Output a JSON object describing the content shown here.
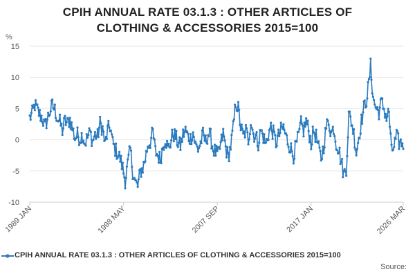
{
  "title_lines": [
    "CPIH ANNUAL RATE 03.1.3 : OTHER ARTICLES OF",
    "CLOTHING & ACCESSORIES 2015=100"
  ],
  "source_label": "Source:",
  "colors": {
    "series": "#2b7bbf",
    "grid": "#e6e6e6",
    "axis": "#cccccc",
    "text": "#555555"
  },
  "chart_data": {
    "type": "line",
    "title": "CPIH ANNUAL RATE 03.1.3 : OTHER ARTICLES OF CLOTHING & ACCESSORIES 2015=100",
    "xlabel": "",
    "ylabel": "%",
    "ylim": [
      -10,
      15
    ],
    "yticks": [
      -10,
      -5,
      0,
      5,
      10,
      15
    ],
    "x_tick_labels": [
      "1989 JAN",
      "1998 MAY",
      "2007 SEP",
      "2017 JAN",
      "2026 MAR"
    ],
    "x_range": [
      "1989 JAN",
      "2026 MAR"
    ],
    "grid": true,
    "legend": "bottom",
    "series": [
      {
        "name": "CPIH ANNUAL RATE 03.1.3 : OTHER ARTICLES OF CLOTHING & ACCESSORIES 2015=100",
        "frequency": "monthly",
        "start": "1989 JAN",
        "anchors": [
          [
            "1989 JAN",
            3.5
          ],
          [
            "1989 APR",
            4.2
          ],
          [
            "1989 JUL",
            5.6
          ],
          [
            "1989 OCT",
            4.8
          ],
          [
            "1990 JAN",
            4.0
          ],
          [
            "1990 APR",
            3.5
          ],
          [
            "1990 JUL",
            2.0
          ],
          [
            "1990 OCT",
            3.3
          ],
          [
            "1991 JAN",
            4.6
          ],
          [
            "1991 APR",
            5.5
          ],
          [
            "1991 JUL",
            4.8
          ],
          [
            "1991 OCT",
            3.5
          ],
          [
            "1992 JAN",
            2.8
          ],
          [
            "1992 APR",
            1.5
          ],
          [
            "1992 JUL",
            3.0
          ],
          [
            "1992 OCT",
            2.6
          ],
          [
            "1993 JAN",
            3.3
          ],
          [
            "1993 APR",
            1.8
          ],
          [
            "1993 JUL",
            0.3
          ],
          [
            "1993 OCT",
            0.8
          ],
          [
            "1994 JAN",
            0.2
          ],
          [
            "1994 APR",
            0.9
          ],
          [
            "1994 JUL",
            -0.5
          ],
          [
            "1994 OCT",
            0.4
          ],
          [
            "1995 JAN",
            1.2
          ],
          [
            "1995 APR",
            -0.2
          ],
          [
            "1995 JUL",
            0.8
          ],
          [
            "1995 OCT",
            0.5
          ],
          [
            "1996 JAN",
            2.6
          ],
          [
            "1996 APR",
            1.8
          ],
          [
            "1996 JUL",
            -0.8
          ],
          [
            "1996 OCT",
            1.5
          ],
          [
            "1997 JAN",
            2.2
          ],
          [
            "1997 APR",
            -0.5
          ],
          [
            "1997 JUL",
            -1.5
          ],
          [
            "1997 OCT",
            -2.2
          ],
          [
            "1998 JAN",
            -3.0
          ],
          [
            "1998 APR",
            -4.5
          ],
          [
            "1998 JUL",
            -6.5
          ],
          [
            "1998 OCT",
            -4.0
          ],
          [
            "1999 JAN",
            -1.5
          ],
          [
            "1999 APR",
            -5.0
          ],
          [
            "1999 JUL",
            -6.8
          ],
          [
            "1999 OCT",
            -7.5
          ],
          [
            "2000 JAN",
            -5.2
          ],
          [
            "2000 APR",
            -4.5
          ],
          [
            "2000 JUL",
            -3.0
          ],
          [
            "2000 OCT",
            -0.8
          ],
          [
            "2001 JAN",
            -0.3
          ],
          [
            "2001 APR",
            1.2
          ],
          [
            "2001 JUL",
            -1.8
          ],
          [
            "2001 OCT",
            -2.5
          ],
          [
            "2002 JAN",
            -3.2
          ],
          [
            "2002 APR",
            -1.0
          ],
          [
            "2002 JUL",
            0.3
          ],
          [
            "2002 OCT",
            -1.5
          ],
          [
            "2003 JAN",
            -0.5
          ],
          [
            "2003 APR",
            1.0
          ],
          [
            "2003 JUL",
            0.5
          ],
          [
            "2003 OCT",
            -0.5
          ],
          [
            "2004 JAN",
            -1.0
          ],
          [
            "2004 APR",
            0.8
          ],
          [
            "2004 JUL",
            1.5
          ],
          [
            "2004 OCT",
            0.5
          ],
          [
            "2005 JAN",
            0.2
          ],
          [
            "2005 APR",
            1.2
          ],
          [
            "2005 JUL",
            -0.8
          ],
          [
            "2005 OCT",
            -1.5
          ],
          [
            "2006 JAN",
            -0.5
          ],
          [
            "2006 APR",
            0.8
          ],
          [
            "2006 JUL",
            -0.3
          ],
          [
            "2006 OCT",
            1.0
          ],
          [
            "2007 JAN",
            0.5
          ],
          [
            "2007 APR",
            -1.5
          ],
          [
            "2007 JUL",
            -2.0
          ],
          [
            "2007 OCT",
            -2.5
          ],
          [
            "2008 JAN",
            -0.8
          ],
          [
            "2008 APR",
            1.0
          ],
          [
            "2008 JUL",
            -1.2
          ],
          [
            "2008 OCT",
            -2.8
          ],
          [
            "2009 JAN",
            -1.0
          ],
          [
            "2009 APR",
            1.8
          ],
          [
            "2009 JUL",
            6.0
          ],
          [
            "2009 OCT",
            5.0
          ],
          [
            "2010 JAN",
            2.0
          ],
          [
            "2010 APR",
            0.5
          ],
          [
            "2010 JUL",
            1.5
          ],
          [
            "2010 OCT",
            0.0
          ],
          [
            "2011 JAN",
            3.0
          ],
          [
            "2011 APR",
            1.0
          ],
          [
            "2011 JUL",
            0.5
          ],
          [
            "2011 OCT",
            -0.5
          ],
          [
            "2012 JAN",
            1.5
          ],
          [
            "2012 APR",
            0.5
          ],
          [
            "2012 JUL",
            -0.8
          ],
          [
            "2012 OCT",
            1.0
          ],
          [
            "2013 JAN",
            2.0
          ],
          [
            "2013 APR",
            1.0
          ],
          [
            "2013 JUL",
            -0.5
          ],
          [
            "2013 OCT",
            0.5
          ],
          [
            "2014 JAN",
            1.5
          ],
          [
            "2014 APR",
            2.0
          ],
          [
            "2014 JUL",
            0.5
          ],
          [
            "2014 OCT",
            -0.5
          ],
          [
            "2015 JAN",
            -1.5
          ],
          [
            "2015 APR",
            -2.5
          ],
          [
            "2015 JUL",
            -1.0
          ],
          [
            "2015 OCT",
            0.5
          ],
          [
            "2016 JAN",
            2.5
          ],
          [
            "2016 APR",
            1.5
          ],
          [
            "2016 JUL",
            3.0
          ],
          [
            "2016 OCT",
            1.5
          ],
          [
            "2017 JAN",
            -0.5
          ],
          [
            "2017 APR",
            1.5
          ],
          [
            "2017 JUL",
            0.5
          ],
          [
            "2017 OCT",
            -1.5
          ],
          [
            "2018 JAN",
            -3.0
          ],
          [
            "2018 APR",
            -1.0
          ],
          [
            "2018 JUL",
            2.0
          ],
          [
            "2018 OCT",
            3.0
          ],
          [
            "2019 JAN",
            1.0
          ],
          [
            "2019 APR",
            2.0
          ],
          [
            "2019 JUL",
            -0.5
          ],
          [
            "2019 OCT",
            -1.5
          ],
          [
            "2020 JAN",
            -3.5
          ],
          [
            "2020 APR",
            -5.5
          ],
          [
            "2020 JUL",
            -4.5
          ],
          [
            "2020 OCT",
            4.0
          ],
          [
            "2021 JAN",
            3.0
          ],
          [
            "2021 APR",
            1.0
          ],
          [
            "2021 JUL",
            -2.0
          ],
          [
            "2021 OCT",
            0.5
          ],
          [
            "2022 JAN",
            3.0
          ],
          [
            "2022 APR",
            5.0
          ],
          [
            "2022 JUL",
            6.5
          ],
          [
            "2022 OCT",
            9.0
          ],
          [
            "2022 DEC",
            11.8
          ],
          [
            "2023 FEB",
            8.5
          ],
          [
            "2023 APR",
            6.0
          ],
          [
            "2023 JUL",
            5.0
          ],
          [
            "2023 OCT",
            4.5
          ],
          [
            "2024 JAN",
            6.0
          ],
          [
            "2024 APR",
            5.0
          ],
          [
            "2024 JUL",
            3.5
          ],
          [
            "2024 OCT",
            4.5
          ],
          [
            "2025 JAN",
            -2.0
          ],
          [
            "2025 APR",
            -1.0
          ],
          [
            "2025 JUL",
            0.5
          ],
          [
            "2025 OCT",
            -0.5
          ],
          [
            "2026 MAR",
            -0.5
          ]
        ]
      }
    ]
  }
}
